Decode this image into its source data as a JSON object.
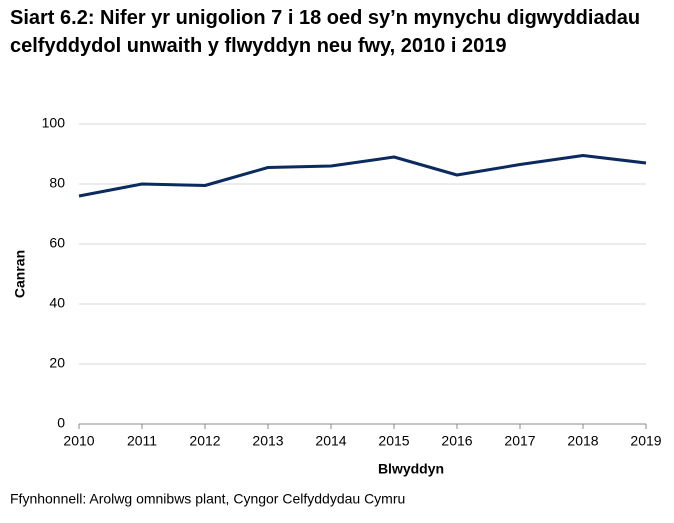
{
  "chart_data": {
    "type": "line",
    "title": "Siart 6.2: Nifer yr unigolion 7 i 18 oed sy’n mynychu digwyddiadau celfyddydol unwaith y flwyddyn neu fwy, 2010 i 2019",
    "x_label": "Blwyddyn",
    "y_label": "Canran",
    "source": "Ffynhonnell: Arolwg omnibws plant, Cyngor Celfyddydau Cymru",
    "x": [
      2010,
      2011,
      2012,
      2013,
      2014,
      2015,
      2016,
      2017,
      2018,
      2019
    ],
    "series": [
      {
        "color": "#0b2a5e",
        "values": [
          76,
          80,
          79.5,
          85.5,
          86,
          89,
          83,
          86.5,
          89.5,
          87
        ]
      }
    ],
    "xlim": [
      2010,
      2019
    ],
    "xticks": [
      2010,
      2011,
      2012,
      2013,
      2014,
      2015,
      2016,
      2017,
      2018,
      2019
    ],
    "ylim": [
      0,
      100
    ],
    "yticks": [
      0,
      20,
      40,
      60,
      80,
      100
    ],
    "grid": true
  }
}
